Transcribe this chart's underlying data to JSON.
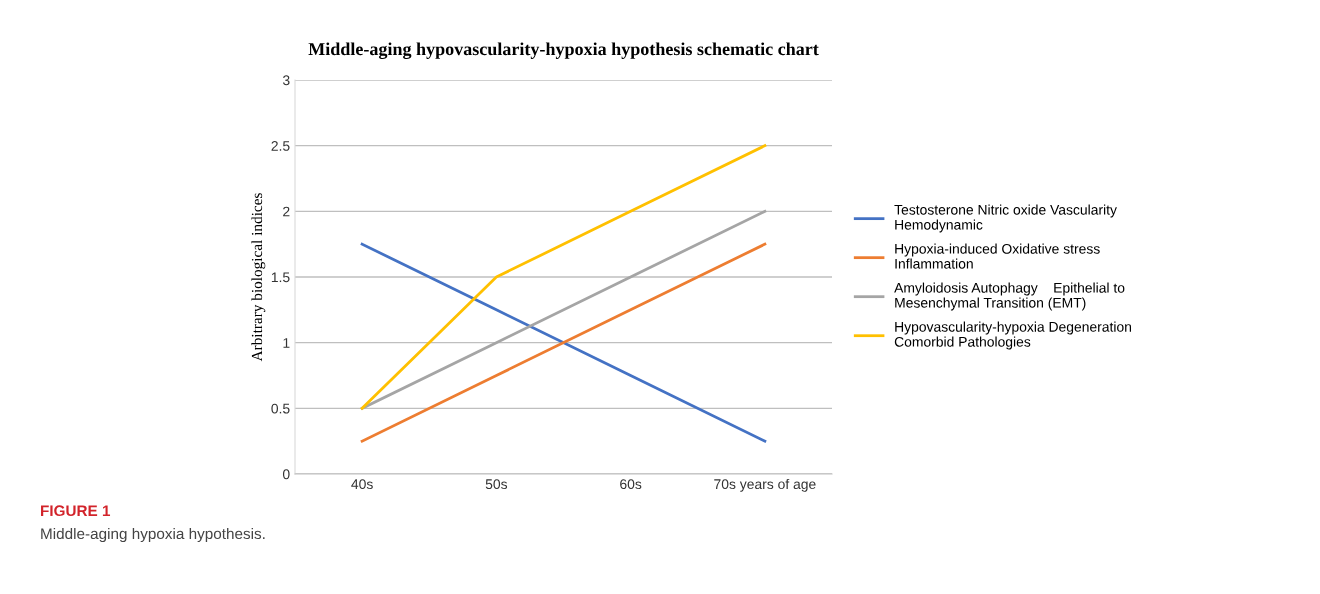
{
  "chart_data": {
    "type": "line",
    "title": "Middle-aging hypovascularity-hypoxia hypothesis schematic chart",
    "ylabel": "Arbitrary biological indices",
    "categories": [
      "40s",
      "50s",
      "60s",
      "70s years of age"
    ],
    "series": [
      {
        "name": "Testosterone Nitric oxide Vascularity\nHemodynamic",
        "color": "#4472c4",
        "values": [
          1.75,
          1.25,
          0.75,
          0.25
        ]
      },
      {
        "name": "Hypoxia-induced Oxidative stress\nInflammation",
        "color": "#ed7d31",
        "values": [
          0.25,
          0.75,
          1.25,
          1.75
        ]
      },
      {
        "name": "Amyloidosis Autophagy    Epithelial to\nMesenchymal Transition (EMT)",
        "color": "#a5a5a5",
        "values": [
          0.5,
          1,
          1.5,
          2
        ]
      },
      {
        "name": "Hypovascularity-hypoxia Degeneration\nComorbid Pathologies",
        "color": "#ffc000",
        "values": [
          0.5,
          1.5,
          2,
          2.5
        ]
      }
    ],
    "ylim": [
      0,
      3
    ],
    "yticks": [
      0,
      0.5,
      1,
      1.5,
      2,
      2.5,
      3
    ],
    "grid": "y",
    "legend": "right",
    "marker": "none",
    "annotations": [
      "FIGURE 1",
      "Middle-aging hypoxia hypothesis."
    ]
  }
}
